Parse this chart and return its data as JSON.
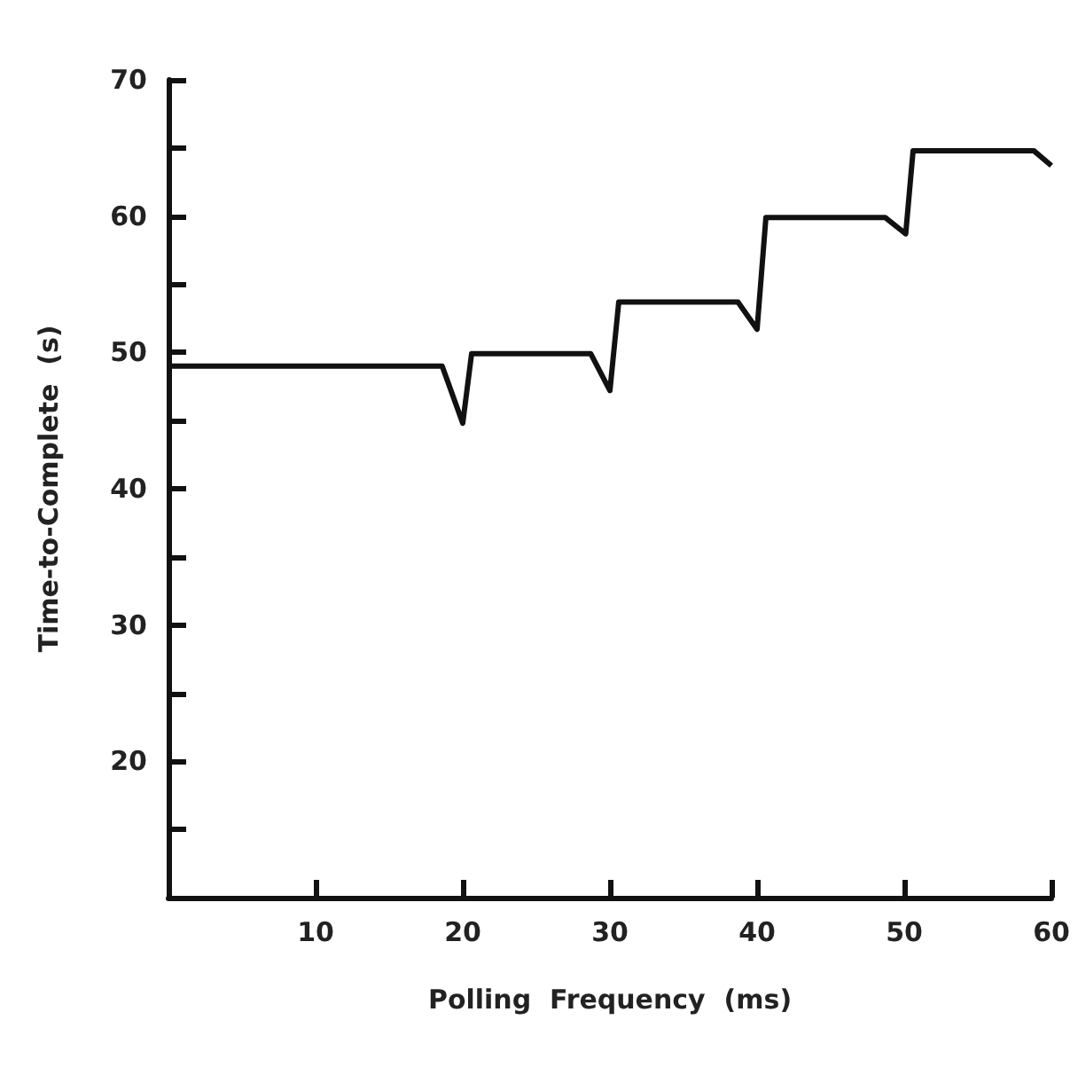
{
  "chart_data": {
    "type": "line",
    "xlabel": "Polling  Frequency  (ms)",
    "ylabel": "Time-to-Complete  (s)",
    "x": [
      0,
      18.6,
      20.0,
      20.6,
      28.7,
      30.0,
      30.6,
      38.7,
      40.0,
      40.6,
      48.7,
      50.1,
      50.6,
      58.8,
      60
    ],
    "series": [
      {
        "color": "#111111",
        "values": [
          49,
          49,
          44.8,
          49.9,
          49.9,
          47.2,
          53.7,
          53.7,
          51.7,
          59.9,
          59.9,
          58.7,
          64.8,
          64.8,
          63.7
        ]
      }
    ],
    "xlim": [
      0,
      60
    ],
    "xticks": [
      10,
      20,
      30,
      40,
      50,
      60
    ],
    "ylim": [
      10,
      70
    ],
    "yticks": [
      {
        "value": 15,
        "label": null
      },
      20,
      {
        "value": 25,
        "label": null
      },
      30,
      {
        "value": 35,
        "label": null
      },
      40,
      {
        "value": 45,
        "label": null
      },
      50,
      {
        "value": 55,
        "label": null
      },
      60,
      {
        "value": 65,
        "label": null
      },
      70
    ],
    "grid": false,
    "marker": "none",
    "line_style": "solid"
  }
}
